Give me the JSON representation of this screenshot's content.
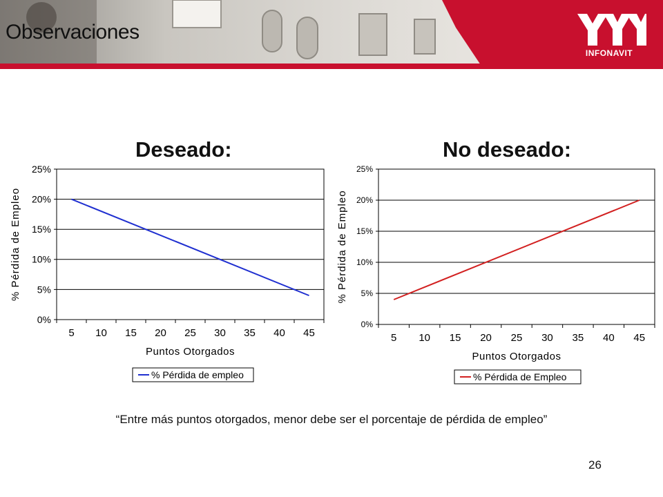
{
  "slide": {
    "title": "Observaciones",
    "logo_text": "INFONAVIT",
    "quote": "“Entre más puntos otorgados, menor debe ser el porcentaje de pérdida de empleo”",
    "page_number": "26",
    "header_color": "#c8102e"
  },
  "chart_data": [
    {
      "type": "line",
      "heading": "Deseado:",
      "x": [
        5,
        10,
        15,
        20,
        25,
        30,
        35,
        40,
        45
      ],
      "series": [
        {
          "name": "% Pérdida de empleo",
          "color": "#1f2fd0",
          "points": [
            [
              5,
              20
            ],
            [
              45,
              4
            ]
          ]
        }
      ],
      "xlabel": "Puntos Otorgados",
      "ylabel": "% Pérdida de Empleo",
      "yticks": [
        "0%",
        "5%",
        "10%",
        "15%",
        "20%",
        "25%"
      ],
      "ylim": [
        0,
        25
      ],
      "grid": true,
      "legend": "bottom"
    },
    {
      "type": "line",
      "heading": "No deseado:",
      "x": [
        5,
        10,
        15,
        20,
        25,
        30,
        35,
        40,
        45
      ],
      "series": [
        {
          "name": "% Pérdida de Empleo",
          "color": "#d22020",
          "points": [
            [
              5,
              4
            ],
            [
              45,
              20
            ]
          ]
        }
      ],
      "xlabel": "Puntos Otorgados",
      "ylabel": "% Pérdida de Empleo",
      "yticks": [
        "0%",
        "5%",
        "10%",
        "15%",
        "20%",
        "25%"
      ],
      "ylim": [
        0,
        25
      ],
      "grid": true,
      "legend": "bottom"
    }
  ]
}
